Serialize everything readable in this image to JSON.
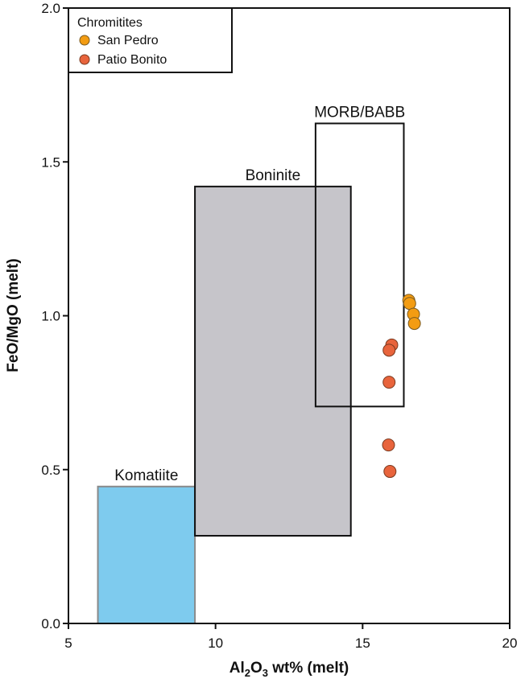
{
  "chart_data": {
    "type": "scatter",
    "title": "",
    "xlabel_parts": [
      "Al",
      "2",
      "O",
      "3",
      " wt% (melt)"
    ],
    "ylabel": "FeO/MgO (melt)",
    "xlim": [
      5,
      20
    ],
    "ylim": [
      0,
      2
    ],
    "xticks": [
      5,
      10,
      15,
      20
    ],
    "xtick_labels": [
      "5",
      "10",
      "15",
      "20"
    ],
    "yticks": [
      0,
      0.5,
      1,
      1.5,
      2
    ],
    "ytick_labels": [
      "0.0",
      "0.5",
      "1.0",
      "1.5",
      "2.0"
    ],
    "grid": false,
    "legend": {
      "title": "Chromitites",
      "placement": "top-left"
    },
    "fields": [
      {
        "name": "Komatiite",
        "x": [
          6.0,
          9.3
        ],
        "y": [
          0.0,
          0.445
        ],
        "fill": "#7ecbee",
        "stroke": "#8a8a8a"
      },
      {
        "name": "Boninite",
        "x": [
          9.3,
          14.6
        ],
        "y": [
          0.285,
          1.42
        ],
        "fill": "#c6c5ca",
        "stroke": "#111111"
      },
      {
        "name": "MORB/BABB",
        "x": [
          13.4,
          16.4
        ],
        "y": [
          0.705,
          1.625
        ],
        "fill": "none",
        "stroke": "#111111"
      }
    ],
    "series": [
      {
        "name": "San Pedro",
        "color": "#f39c12",
        "points": [
          [
            16.57,
            1.05
          ],
          [
            16.6,
            1.04
          ],
          [
            16.73,
            1.005
          ],
          [
            16.76,
            0.975
          ]
        ]
      },
      {
        "name": "Patio Bonito",
        "color": "#e8643c",
        "points": [
          [
            15.99,
            0.905
          ],
          [
            15.9,
            0.888
          ],
          [
            15.9,
            0.784
          ],
          [
            15.88,
            0.58
          ],
          [
            15.93,
            0.494
          ]
        ]
      }
    ]
  }
}
